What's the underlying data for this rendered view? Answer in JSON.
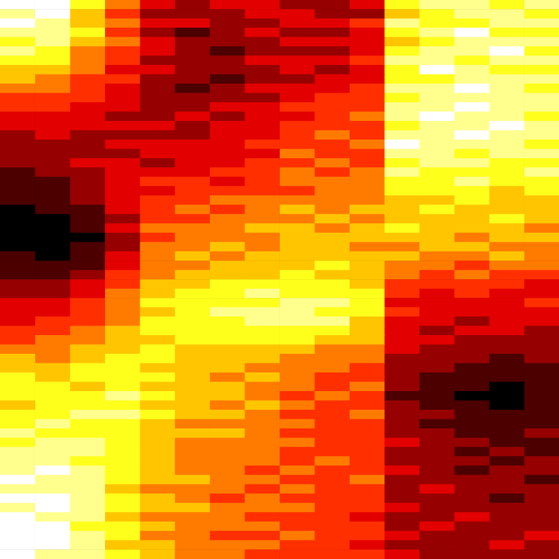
{
  "chart_data": {
    "type": "heatmap",
    "color": "hot",
    "grid": false,
    "tick_labels": false,
    "cells": [
      [
        9,
        9,
        7,
        5,
        3,
        2,
        3,
        3,
        2,
        2,
        3,
        7,
        8,
        8,
        7,
        8
      ],
      [
        8,
        9,
        6,
        4,
        2,
        2,
        2,
        3,
        3,
        2,
        2,
        6,
        7,
        8,
        8,
        7
      ],
      [
        9,
        8,
        6,
        5,
        3,
        3,
        2,
        2,
        3,
        3,
        4,
        8,
        7,
        7,
        8,
        8
      ],
      [
        8,
        8,
        7,
        4,
        2,
        1,
        2,
        3,
        2,
        2,
        3,
        7,
        8,
        9,
        7,
        7
      ],
      [
        7,
        8,
        6,
        5,
        3,
        2,
        2,
        2,
        3,
        3,
        3,
        6,
        7,
        8,
        8,
        8
      ],
      [
        8,
        7,
        5,
        4,
        3,
        2,
        1,
        2,
        2,
        2,
        3,
        7,
        8,
        8,
        9,
        7
      ],
      [
        7,
        7,
        5,
        4,
        2,
        2,
        2,
        3,
        3,
        3,
        4,
        8,
        8,
        7,
        8,
        8
      ],
      [
        6,
        6,
        5,
        3,
        3,
        2,
        2,
        2,
        3,
        2,
        3,
        7,
        9,
        8,
        7,
        7
      ],
      [
        6,
        5,
        4,
        4,
        2,
        2,
        1,
        2,
        2,
        3,
        3,
        7,
        7,
        8,
        8,
        8
      ],
      [
        5,
        5,
        4,
        3,
        2,
        1,
        2,
        3,
        3,
        3,
        4,
        8,
        8,
        9,
        8,
        7
      ],
      [
        4,
        4,
        4,
        3,
        2,
        2,
        2,
        2,
        3,
        4,
        4,
        7,
        8,
        8,
        8,
        8
      ],
      [
        4,
        4,
        3,
        3,
        2,
        2,
        3,
        3,
        4,
        4,
        4,
        8,
        8,
        9,
        8,
        8
      ],
      [
        3,
        3,
        3,
        2,
        2,
        3,
        2,
        3,
        3,
        4,
        5,
        8,
        9,
        8,
        8,
        7
      ],
      [
        3,
        3,
        3,
        3,
        3,
        2,
        3,
        3,
        4,
        4,
        4,
        7,
        8,
        8,
        9,
        8
      ],
      [
        2,
        3,
        2,
        2,
        2,
        2,
        3,
        3,
        4,
        5,
        4,
        8,
        8,
        9,
        8,
        8
      ],
      [
        2,
        2,
        2,
        3,
        3,
        3,
        3,
        4,
        4,
        4,
        5,
        9,
        8,
        8,
        8,
        7
      ],
      [
        2,
        2,
        2,
        2,
        3,
        3,
        3,
        3,
        5,
        4,
        4,
        8,
        8,
        7,
        8,
        8
      ],
      [
        2,
        2,
        3,
        3,
        2,
        3,
        3,
        4,
        4,
        5,
        4,
        7,
        8,
        8,
        7,
        7
      ],
      [
        1,
        2,
        2,
        3,
        3,
        3,
        4,
        4,
        5,
        4,
        5,
        8,
        7,
        7,
        7,
        8
      ],
      [
        1,
        1,
        2,
        3,
        4,
        4,
        3,
        4,
        5,
        5,
        5,
        7,
        7,
        8,
        7,
        7
      ],
      [
        1,
        1,
        2,
        3,
        3,
        4,
        4,
        4,
        4,
        5,
        5,
        7,
        7,
        7,
        6,
        7
      ],
      [
        1,
        1,
        2,
        3,
        4,
        4,
        5,
        5,
        5,
        5,
        5,
        6,
        6,
        7,
        6,
        6
      ],
      [
        0,
        1,
        1,
        3,
        4,
        5,
        4,
        5,
        6,
        5,
        6,
        6,
        7,
        6,
        6,
        6
      ],
      [
        0,
        0,
        1,
        2,
        4,
        4,
        5,
        5,
        5,
        6,
        5,
        6,
        6,
        6,
        7,
        6
      ],
      [
        0,
        0,
        1,
        3,
        5,
        5,
        5,
        6,
        6,
        5,
        6,
        7,
        6,
        6,
        6,
        5
      ],
      [
        0,
        0,
        0,
        2,
        4,
        5,
        5,
        5,
        6,
        6,
        6,
        6,
        6,
        5,
        6,
        6
      ],
      [
        0,
        0,
        1,
        2,
        5,
        5,
        6,
        5,
        6,
        6,
        5,
        5,
        6,
        6,
        5,
        5
      ],
      [
        1,
        0,
        1,
        3,
        5,
        6,
        5,
        6,
        6,
        6,
        6,
        6,
        5,
        5,
        6,
        5
      ],
      [
        1,
        1,
        1,
        3,
        5,
        5,
        6,
        6,
        6,
        7,
        6,
        5,
        5,
        4,
        5,
        5
      ],
      [
        1,
        1,
        2,
        4,
        5,
        6,
        6,
        6,
        7,
        6,
        6,
        5,
        4,
        5,
        4,
        4
      ],
      [
        2,
        2,
        3,
        4,
        6,
        6,
        7,
        7,
        7,
        7,
        6,
        4,
        4,
        4,
        4,
        3
      ],
      [
        2,
        2,
        3,
        5,
        6,
        7,
        7,
        8,
        7,
        7,
        7,
        4,
        3,
        4,
        3,
        3
      ],
      [
        3,
        3,
        4,
        5,
        7,
        7,
        7,
        7,
        8,
        8,
        7,
        3,
        3,
        3,
        3,
        4
      ],
      [
        3,
        3,
        4,
        5,
        6,
        7,
        8,
        8,
        8,
        7,
        7,
        4,
        3,
        3,
        3,
        3
      ],
      [
        3,
        4,
        4,
        5,
        7,
        7,
        7,
        8,
        8,
        8,
        6,
        3,
        3,
        2,
        3,
        3
      ],
      [
        4,
        4,
        5,
        6,
        7,
        7,
        7,
        7,
        7,
        7,
        6,
        3,
        2,
        3,
        3,
        2
      ],
      [
        4,
        5,
        5,
        6,
        6,
        7,
        7,
        7,
        7,
        6,
        6,
        3,
        3,
        2,
        2,
        2
      ],
      [
        5,
        5,
        6,
        6,
        7,
        6,
        6,
        6,
        6,
        5,
        5,
        3,
        2,
        2,
        2,
        2
      ],
      [
        6,
        5,
        6,
        7,
        7,
        6,
        6,
        6,
        5,
        5,
        5,
        2,
        2,
        2,
        1,
        2
      ],
      [
        6,
        6,
        7,
        7,
        6,
        6,
        6,
        5,
        5,
        5,
        4,
        2,
        2,
        1,
        1,
        1
      ],
      [
        7,
        6,
        7,
        7,
        7,
        6,
        5,
        6,
        5,
        4,
        4,
        2,
        1,
        1,
        1,
        1
      ],
      [
        7,
        7,
        6,
        7,
        6,
        6,
        6,
        5,
        5,
        4,
        5,
        2,
        1,
        1,
        0,
        1
      ],
      [
        7,
        7,
        7,
        8,
        7,
        6,
        6,
        5,
        4,
        5,
        4,
        1,
        1,
        0,
        0,
        1
      ],
      [
        6,
        7,
        7,
        7,
        6,
        6,
        5,
        6,
        5,
        4,
        4,
        2,
        1,
        1,
        0,
        1
      ],
      [
        7,
        7,
        8,
        8,
        7,
        6,
        6,
        5,
        4,
        4,
        5,
        2,
        2,
        1,
        1,
        1
      ],
      [
        7,
        8,
        7,
        7,
        6,
        5,
        5,
        5,
        5,
        4,
        4,
        2,
        1,
        1,
        1,
        1
      ],
      [
        8,
        7,
        7,
        7,
        6,
        6,
        6,
        5,
        4,
        4,
        4,
        2,
        2,
        1,
        1,
        2
      ],
      [
        7,
        8,
        8,
        7,
        6,
        5,
        5,
        5,
        5,
        4,
        4,
        3,
        2,
        2,
        1,
        1
      ],
      [
        8,
        8,
        8,
        7,
        6,
        5,
        5,
        5,
        4,
        4,
        4,
        2,
        2,
        1,
        2,
        1
      ],
      [
        8,
        8,
        7,
        7,
        6,
        5,
        5,
        5,
        4,
        5,
        4,
        2,
        2,
        2,
        1,
        2
      ],
      [
        8,
        9,
        8,
        7,
        6,
        5,
        5,
        4,
        5,
        4,
        4,
        3,
        2,
        1,
        2,
        2
      ],
      [
        9,
        8,
        8,
        7,
        6,
        6,
        5,
        5,
        4,
        4,
        5,
        2,
        2,
        2,
        2,
        1
      ],
      [
        8,
        8,
        8,
        6,
        5,
        5,
        5,
        4,
        5,
        4,
        4,
        2,
        3,
        2,
        2,
        2
      ],
      [
        9,
        9,
        8,
        7,
        6,
        5,
        4,
        5,
        4,
        4,
        4,
        2,
        2,
        2,
        1,
        2
      ],
      [
        8,
        9,
        8,
        7,
        6,
        6,
        5,
        5,
        5,
        4,
        4,
        3,
        2,
        2,
        2,
        2
      ],
      [
        9,
        8,
        8,
        6,
        5,
        5,
        5,
        4,
        4,
        4,
        3,
        2,
        2,
        3,
        2,
        2
      ],
      [
        9,
        9,
        7,
        7,
        6,
        5,
        5,
        5,
        4,
        4,
        4,
        2,
        3,
        2,
        2,
        2
      ],
      [
        9,
        9,
        8,
        7,
        5,
        5,
        4,
        4,
        5,
        4,
        4,
        3,
        2,
        2,
        2,
        3
      ],
      [
        9,
        9,
        8,
        6,
        6,
        5,
        5,
        5,
        4,
        4,
        3,
        2,
        2,
        2,
        3,
        2
      ],
      [
        9,
        8,
        8,
        7,
        6,
        5,
        5,
        4,
        4,
        4,
        4,
        3,
        2,
        2,
        2,
        2
      ]
    ]
  }
}
